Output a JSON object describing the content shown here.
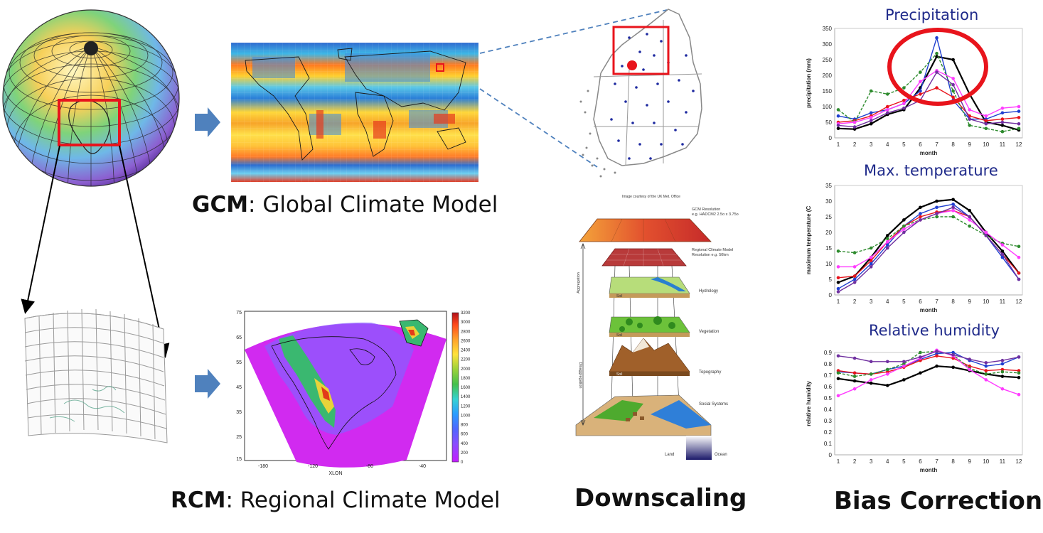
{
  "captions": {
    "gcm_bold": "GCM",
    "gcm_rest": ": Global Climate Model",
    "rcm_bold": "RCM",
    "rcm_rest": ": Regional Climate Model",
    "downscaling": "Downscaling",
    "bias_correction": "Bias Correction"
  },
  "downscaling_diagram": {
    "credit": "Image courtesy of the UK Met. Office",
    "gcm_resolution": "GCM Resolution",
    "gcm_resolution_eg": "e.g. HADCM2 2.5o x 3.75o",
    "rcm_resolution": "Regional Climate Model",
    "rcm_resolution_eg": "Resolution e.g. 50km",
    "hydrology": "Hydrology",
    "vegetation": "Vegetation",
    "topography": "Topography",
    "social": "Social Systems",
    "land": "Land",
    "ocean": "Ocean",
    "soil": "Soil",
    "aggregation": "Aggregation",
    "disaggregation": "Disaggregation"
  },
  "rcm_map": {
    "xlabel": "XLON",
    "x_ticks": [
      "-180",
      "-120",
      "-80",
      "-40"
    ],
    "y_ticks": [
      "75",
      "65",
      "55",
      "45",
      "35",
      "25",
      "15"
    ],
    "colorbar_ticks": [
      "3200",
      "3000",
      "2800",
      "2600",
      "2400",
      "2200",
      "2000",
      "1800",
      "1600",
      "1400",
      "1200",
      "1000",
      "800",
      "600",
      "400",
      "200",
      "0"
    ]
  },
  "colors": {
    "highlight_red": "#e8141c",
    "arrow_blue": "#4f81bd",
    "title_navy": "#1f2a8a"
  },
  "chart_data": [
    {
      "type": "line",
      "title": "Precipitation",
      "xlabel": "month",
      "ylabel": "precipitation (mm)",
      "x": [
        1,
        2,
        3,
        4,
        5,
        6,
        7,
        8,
        9,
        10,
        11,
        12
      ],
      "ylim": [
        0,
        350
      ],
      "y_ticks": [
        0,
        50,
        100,
        150,
        200,
        250,
        300,
        350
      ],
      "grid": false,
      "series": [
        {
          "color": "#000000",
          "values": [
            30,
            28,
            45,
            75,
            90,
            160,
            260,
            250,
            140,
            50,
            40,
            25
          ]
        },
        {
          "color": "#1f3fd0",
          "values": [
            70,
            60,
            80,
            90,
            110,
            150,
            320,
            120,
            60,
            60,
            80,
            85
          ]
        },
        {
          "color": "#e8141c",
          "values": [
            50,
            55,
            70,
            100,
            120,
            140,
            160,
            130,
            70,
            55,
            60,
            65
          ]
        },
        {
          "color": "#2e8b2e",
          "values": [
            90,
            50,
            150,
            140,
            160,
            210,
            270,
            150,
            40,
            30,
            20,
            30
          ]
        },
        {
          "color": "#ff3cff",
          "values": [
            45,
            50,
            65,
            90,
            110,
            180,
            215,
            190,
            90,
            70,
            95,
            100
          ]
        },
        {
          "color": "#7030a0",
          "values": [
            40,
            35,
            55,
            80,
            95,
            120,
            210,
            170,
            60,
            45,
            50,
            45
          ]
        }
      ]
    },
    {
      "type": "line",
      "title": "Max. temperature",
      "xlabel": "month",
      "ylabel": "maximum temperature (C",
      "x": [
        1,
        2,
        3,
        4,
        5,
        6,
        7,
        8,
        9,
        10,
        11,
        12
      ],
      "ylim": [
        0,
        35
      ],
      "y_ticks": [
        0,
        5,
        10,
        15,
        20,
        25,
        30,
        35
      ],
      "grid": false,
      "series": [
        {
          "color": "#000000",
          "values": [
            4,
            6,
            12,
            19,
            24,
            28,
            30,
            30.5,
            27,
            20,
            14,
            7
          ]
        },
        {
          "color": "#1f3fd0",
          "values": [
            2,
            5,
            10,
            16,
            22,
            26,
            28,
            29,
            25,
            19,
            12,
            5
          ]
        },
        {
          "color": "#e8141c",
          "values": [
            5.5,
            6,
            11,
            17,
            22,
            25,
            26.5,
            27,
            25,
            19,
            13,
            7
          ]
        },
        {
          "color": "#2e8b2e",
          "values": [
            14,
            13.5,
            15,
            18,
            22,
            24,
            25,
            25,
            22,
            19,
            16.5,
            15.5
          ]
        },
        {
          "color": "#ff3cff",
          "values": [
            9,
            9,
            12,
            17,
            21,
            24,
            26,
            27,
            24,
            20,
            16,
            12
          ]
        },
        {
          "color": "#7030a0",
          "values": [
            1,
            4,
            9,
            15,
            20,
            24,
            26,
            28,
            25,
            19,
            13,
            5
          ]
        }
      ]
    },
    {
      "type": "line",
      "title": "Relative humidity",
      "xlabel": "month",
      "ylabel": "relative humidity",
      "x": [
        1,
        2,
        3,
        4,
        5,
        6,
        7,
        8,
        9,
        10,
        11,
        12
      ],
      "ylim": [
        0,
        0.9
      ],
      "y_ticks": [
        0,
        0.1,
        0.2,
        0.3,
        0.4,
        0.5,
        0.6,
        0.7,
        0.8,
        0.9
      ],
      "grid": false,
      "series": [
        {
          "color": "#000000",
          "values": [
            0.67,
            0.65,
            0.63,
            0.61,
            0.66,
            0.72,
            0.78,
            0.77,
            0.74,
            0.71,
            0.69,
            0.68
          ]
        },
        {
          "color": "#1f3fd0",
          "values": [
            0.73,
            0.72,
            0.71,
            0.75,
            0.78,
            0.84,
            0.89,
            0.9,
            0.83,
            0.78,
            0.8,
            0.86
          ]
        },
        {
          "color": "#e8141c",
          "values": [
            0.74,
            0.72,
            0.71,
            0.73,
            0.77,
            0.83,
            0.87,
            0.85,
            0.78,
            0.74,
            0.75,
            0.74
          ]
        },
        {
          "color": "#2e8b2e",
          "values": [
            0.72,
            0.69,
            0.71,
            0.75,
            0.8,
            0.9,
            0.91,
            0.88,
            0.76,
            0.71,
            0.73,
            0.72
          ]
        },
        {
          "color": "#ff3cff",
          "values": [
            0.52,
            0.58,
            0.66,
            0.71,
            0.78,
            0.85,
            0.92,
            0.87,
            0.75,
            0.66,
            0.58,
            0.53
          ]
        },
        {
          "color": "#7030a0",
          "values": [
            0.87,
            0.85,
            0.82,
            0.82,
            0.82,
            0.86,
            0.91,
            0.88,
            0.84,
            0.81,
            0.83,
            0.86
          ]
        }
      ]
    }
  ]
}
